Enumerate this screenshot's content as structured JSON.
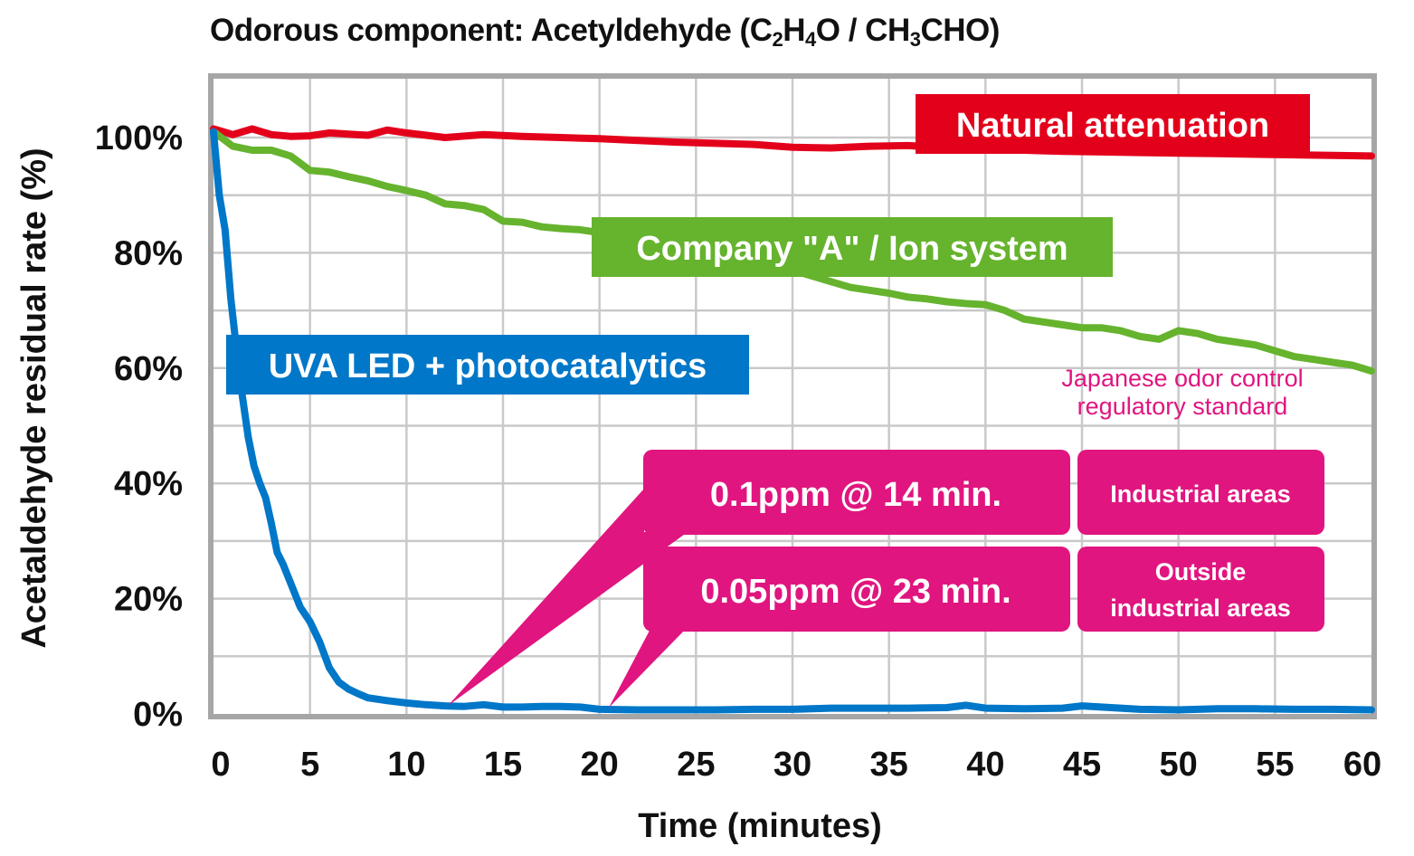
{
  "chart_data": {
    "type": "line",
    "title_main": "Odorous component: Acetyldehyde (C",
    "title_sub1": "2",
    "title_h": "H",
    "title_sub2": "4",
    "title_mid": "O / CH",
    "title_sub3": "3",
    "title_end": "CHO)",
    "xlabel": "Time (minutes)",
    "ylabel": "Acetaldehyde residual rate (%)",
    "xlim": [
      0,
      60
    ],
    "ylim": [
      0,
      100
    ],
    "x_ticks": [
      "0",
      "5",
      "10",
      "15",
      "20",
      "25",
      "30",
      "35",
      "40",
      "45",
      "50",
      "55",
      "60"
    ],
    "y_ticks": [
      "0%",
      "20%",
      "40%",
      "60%",
      "80%",
      "100%"
    ],
    "grid": true,
    "series": [
      {
        "name": "Natural attenuation",
        "color": "#e3001b",
        "x": [
          0,
          1,
          2,
          3,
          4,
          5,
          6,
          7,
          8,
          9,
          10,
          12,
          14,
          16,
          18,
          20,
          22,
          24,
          26,
          28,
          30,
          32,
          34,
          36,
          38,
          40,
          42,
          44,
          46,
          48,
          50,
          52,
          54,
          56,
          58,
          60
        ],
        "y": [
          101.5,
          100.5,
          101.5,
          100.5,
          100.2,
          100.3,
          100.8,
          100.6,
          100.4,
          101.3,
          100.8,
          100,
          100.5,
          100.2,
          100,
          99.8,
          99.5,
          99.2,
          99,
          98.8,
          98.3,
          98.2,
          98.5,
          98.6,
          98.2,
          98.1,
          97.8,
          97.6,
          97.5,
          97.4,
          97.3,
          97.2,
          97.1,
          97,
          96.9,
          96.8
        ]
      },
      {
        "name": "Company \"A\" / Ion system",
        "color": "#66b32e",
        "x": [
          0,
          1,
          2,
          3,
          4,
          5,
          6,
          7,
          8,
          9,
          10,
          11,
          12,
          13,
          14,
          15,
          16,
          17,
          18,
          19,
          20,
          21,
          22,
          23,
          24,
          25,
          26,
          27,
          28,
          29,
          30,
          31,
          32,
          33,
          34,
          35,
          36,
          37,
          38,
          39,
          40,
          41,
          42,
          43,
          44,
          45,
          46,
          47,
          48,
          49,
          50,
          51,
          52,
          53,
          54,
          55,
          56,
          57,
          58,
          59,
          60
        ],
        "y": [
          101,
          98.5,
          97.8,
          97.8,
          96.8,
          94.3,
          94,
          93.2,
          92.5,
          91.5,
          90.8,
          90,
          88.5,
          88.2,
          87.5,
          85.5,
          85.3,
          84.5,
          84.2,
          84,
          83.5,
          83,
          82.5,
          82,
          81.5,
          81,
          80.2,
          79.5,
          78.8,
          78,
          77,
          76,
          75,
          74,
          73.5,
          73,
          72.3,
          72,
          71.5,
          71.2,
          71,
          70,
          68.5,
          68,
          67.5,
          67,
          67,
          66.5,
          65.5,
          65,
          66.5,
          66,
          65,
          64.5,
          64,
          63,
          62,
          61.5,
          61,
          60.5,
          59.5
        ]
      },
      {
        "name": "UVA LED + photocatalytics",
        "color": "#0077c8",
        "x": [
          0,
          0.3,
          0.6,
          0.9,
          1.2,
          1.5,
          1.8,
          2.1,
          2.4,
          2.7,
          3,
          3.3,
          3.6,
          3.9,
          4.2,
          4.5,
          5,
          5.5,
          6,
          6.5,
          7,
          7.5,
          8,
          9,
          10,
          11,
          12,
          13,
          14,
          15,
          16,
          17,
          18,
          19,
          20,
          22,
          24,
          26,
          28,
          30,
          32,
          34,
          36,
          38,
          39,
          40,
          42,
          44,
          45,
          46,
          48,
          50,
          52,
          54,
          56,
          58,
          60
        ],
        "y": [
          101,
          90,
          84,
          72,
          63,
          55,
          48,
          43,
          40,
          37.5,
          33,
          28,
          26,
          23.5,
          21,
          18.5,
          16,
          12.5,
          8,
          5.5,
          4.3,
          3.5,
          2.8,
          2.3,
          1.9,
          1.6,
          1.4,
          1.3,
          1.6,
          1.2,
          1.2,
          1.3,
          1.3,
          1.2,
          0.8,
          0.7,
          0.7,
          0.7,
          0.8,
          0.8,
          1,
          1,
          1,
          1.1,
          1.5,
          1,
          0.9,
          1,
          1.4,
          1.2,
          0.8,
          0.7,
          0.9,
          0.9,
          0.8,
          0.8,
          0.7
        ]
      }
    ],
    "annotations": {
      "natural": "Natural attenuation",
      "company": "Company \"A\" / Ion system",
      "uva": "UVA LED + photocatalytics",
      "standard_line1": "Japanese odor control",
      "standard_line2": "regulatory standard",
      "ppm1": "0.1ppm @ 14 min.",
      "ppm2": "0.05ppm @ 23 min.",
      "industrial": "Industrial areas",
      "outside1": "Outside",
      "outside2": "industrial areas"
    },
    "colors": {
      "annotation": "#e0157f",
      "frame": "#a6a6a6",
      "grid": "#c9c9c9"
    }
  }
}
